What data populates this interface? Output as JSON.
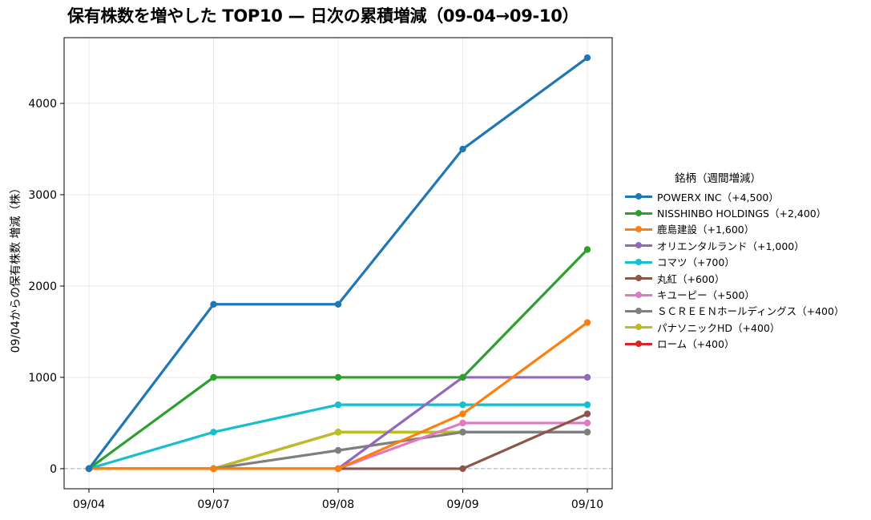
{
  "chart_data": {
    "type": "line",
    "title": "保有株数を増やした TOP10 — 日次の累積増減（09-04→09-10）",
    "xlabel": "",
    "ylabel": "09/04からの保有株数 増減（株）",
    "categories": [
      "09/04",
      "09/07",
      "09/08",
      "09/09",
      "09/10"
    ],
    "ylim": [
      -220,
      4720
    ],
    "yticks": [
      0,
      1000,
      2000,
      3000,
      4000
    ],
    "grid": true,
    "zero_line": true,
    "legend_position": "outside-right",
    "legend_title": "銘柄（週間増減）",
    "series": [
      {
        "name": "POWERX INC（+4,500）",
        "color": "#1f77b4",
        "values": [
          0,
          1800,
          1800,
          3500,
          4500
        ]
      },
      {
        "name": "NISSHINBO HOLDINGS（+2,400）",
        "color": "#2ca02c",
        "values": [
          0,
          1000,
          1000,
          1000,
          2400
        ]
      },
      {
        "name": "鹿島建設（+1,600）",
        "color": "#ff7f0e",
        "values": [
          0,
          0,
          0,
          600,
          1600
        ]
      },
      {
        "name": "オリエンタルランド（+1,000）",
        "color": "#9467bd",
        "values": [
          0,
          0,
          0,
          1000,
          1000
        ]
      },
      {
        "name": "コマツ（+700）",
        "color": "#17becf",
        "values": [
          0,
          400,
          700,
          700,
          700
        ]
      },
      {
        "name": "丸紅（+600）",
        "color": "#8c564b",
        "values": [
          0,
          0,
          0,
          0,
          600
        ]
      },
      {
        "name": "キユーピー（+500）",
        "color": "#e377c2",
        "values": [
          0,
          0,
          0,
          500,
          500
        ]
      },
      {
        "name": "ＳＣＲＥＥＮホールディングス（+400）",
        "color": "#7f7f7f",
        "values": [
          0,
          0,
          200,
          400,
          400
        ]
      },
      {
        "name": "パナソニックHD（+400）",
        "color": "#bcbd22",
        "values": [
          0,
          0,
          400,
          400,
          400
        ]
      },
      {
        "name": "ローム（+400）",
        "color": "#d62728",
        "values": [
          0,
          0,
          400,
          400,
          400
        ]
      }
    ]
  }
}
